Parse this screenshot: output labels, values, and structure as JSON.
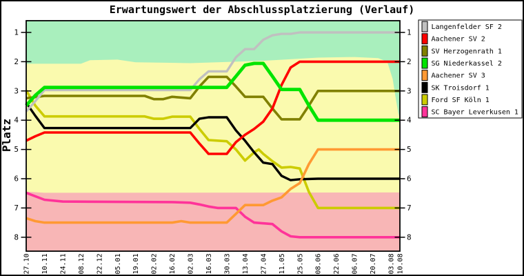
{
  "title": "Erwartungswert der Abschlussplatzierung (Verlauf)",
  "y_axis": {
    "label": "Platz",
    "ticks": [
      "1",
      "2",
      "3",
      "4",
      "5",
      "6",
      "7",
      "8"
    ]
  },
  "x_axis": {
    "labels": [
      "27.10",
      "10.11",
      "24.11",
      "08.12",
      "22.12",
      "05.01",
      "19.01",
      "02.02",
      "16.02",
      "02.03",
      "16.03",
      "30.03",
      "13.04",
      "27.04",
      "11.05",
      "25.05",
      "08.06",
      "22.06",
      "06.07",
      "20.07",
      "03.08",
      "10.08"
    ]
  },
  "chart_data": {
    "type": "line",
    "title": "Erwartungswert der Abschlussplatzierung (Verlauf)",
    "ylabel": "Platz",
    "x_tick_labels": [
      "27.10",
      "10.11",
      "24.11",
      "08.12",
      "22.12",
      "05.01",
      "19.01",
      "02.02",
      "16.02",
      "02.03",
      "16.03",
      "30.03",
      "13.04",
      "27.04",
      "11.05",
      "25.05",
      "08.06",
      "22.06",
      "06.07",
      "20.07",
      "03.08",
      "10.08"
    ],
    "x_note": "x unit = label index (14-day steps); last label 10.08 is a half step (7 days) after 03.08; series points may fall between labels (weekly rounds)",
    "y_ticks": [
      1,
      2,
      3,
      4,
      5,
      6,
      7,
      8
    ],
    "y_axis_inverted": true,
    "ylim": [
      0.6,
      8.45
    ],
    "grid": false,
    "legend_position": "right",
    "series": [
      {
        "name": "Langenfelder SF 2",
        "color": "#C0C0C0",
        "line_width": 3.4,
        "final_rank": 1,
        "points": [
          [
            0,
            3.7
          ],
          [
            0.5,
            3.35
          ],
          [
            1,
            2.97
          ],
          [
            9,
            2.97
          ],
          [
            9.5,
            2.6
          ],
          [
            10,
            2.33
          ],
          [
            11,
            2.33
          ],
          [
            11.5,
            1.85
          ],
          [
            12,
            1.57
          ],
          [
            12.5,
            1.57
          ],
          [
            13,
            1.25
          ],
          [
            13.5,
            1.1
          ],
          [
            14,
            1.05
          ],
          [
            14.5,
            1.05
          ],
          [
            15,
            1.0
          ],
          [
            21,
            1.0
          ]
        ]
      },
      {
        "name": "Aachener SV 2",
        "color": "#FF0000",
        "line_width": 3.6,
        "final_rank": 2,
        "points": [
          [
            0,
            4.7
          ],
          [
            0.5,
            4.55
          ],
          [
            1,
            4.42
          ],
          [
            9,
            4.42
          ],
          [
            9.5,
            4.8
          ],
          [
            10,
            5.15
          ],
          [
            11,
            5.15
          ],
          [
            11.5,
            4.75
          ],
          [
            12,
            4.5
          ],
          [
            12.5,
            4.3
          ],
          [
            13,
            4.05
          ],
          [
            13.5,
            3.6
          ],
          [
            14,
            2.8
          ],
          [
            14.5,
            2.2
          ],
          [
            15,
            2.0
          ],
          [
            21,
            2.0
          ]
        ]
      },
      {
        "name": "SV Herzogenrath 1",
        "color": "#808000",
        "line_width": 3.6,
        "final_rank": 3,
        "points": [
          [
            0,
            3.25
          ],
          [
            1,
            3.17
          ],
          [
            6.5,
            3.17
          ],
          [
            7,
            3.28
          ],
          [
            7.5,
            3.28
          ],
          [
            8,
            3.2
          ],
          [
            9,
            3.25
          ],
          [
            9.5,
            2.85
          ],
          [
            10,
            2.52
          ],
          [
            11,
            2.52
          ],
          [
            11.5,
            2.85
          ],
          [
            12,
            3.2
          ],
          [
            13,
            3.2
          ],
          [
            13.5,
            3.6
          ],
          [
            14,
            3.97
          ],
          [
            15,
            3.97
          ],
          [
            15.5,
            3.5
          ],
          [
            16,
            3.0
          ],
          [
            21,
            3.0
          ]
        ]
      },
      {
        "name": "SG Niederkassel 2",
        "color": "#00E400",
        "line_width": 4.8,
        "final_rank": 4,
        "points": [
          [
            0,
            3.5
          ],
          [
            0.5,
            3.15
          ],
          [
            1,
            2.88
          ],
          [
            11,
            2.88
          ],
          [
            11.5,
            2.5
          ],
          [
            12,
            2.12
          ],
          [
            12.5,
            2.06
          ],
          [
            13,
            2.06
          ],
          [
            13.5,
            2.5
          ],
          [
            14,
            2.95
          ],
          [
            15,
            2.95
          ],
          [
            15.5,
            3.5
          ],
          [
            16,
            4.0
          ],
          [
            21,
            4.0
          ]
        ]
      },
      {
        "name": "Aachener SV 3",
        "color": "#FF9933",
        "line_width": 3.6,
        "final_rank": 5,
        "points": [
          [
            0,
            7.35
          ],
          [
            0.5,
            7.45
          ],
          [
            1,
            7.5
          ],
          [
            8,
            7.5
          ],
          [
            8.5,
            7.45
          ],
          [
            9,
            7.5
          ],
          [
            11,
            7.5
          ],
          [
            11.5,
            7.2
          ],
          [
            12,
            6.9
          ],
          [
            13,
            6.9
          ],
          [
            13.5,
            6.75
          ],
          [
            14,
            6.64
          ],
          [
            14.5,
            6.35
          ],
          [
            15,
            6.15
          ],
          [
            15.5,
            5.5
          ],
          [
            16,
            5.0
          ],
          [
            21,
            5.0
          ]
        ]
      },
      {
        "name": "SK Troisdorf 1",
        "color": "#000000",
        "line_width": 3.4,
        "final_rank": 6,
        "points": [
          [
            0,
            3.4
          ],
          [
            0.5,
            3.85
          ],
          [
            1,
            4.27
          ],
          [
            9,
            4.27
          ],
          [
            9.5,
            3.95
          ],
          [
            10,
            3.9
          ],
          [
            11,
            3.9
          ],
          [
            11.5,
            4.35
          ],
          [
            12,
            4.7
          ],
          [
            12.5,
            5.1
          ],
          [
            13,
            5.45
          ],
          [
            13.5,
            5.5
          ],
          [
            14,
            5.9
          ],
          [
            14.5,
            6.05
          ],
          [
            15,
            6.02
          ],
          [
            16,
            6.0
          ],
          [
            21,
            6.0
          ]
        ]
      },
      {
        "name": "Ford SF Köln 1",
        "color": "#CCCC00",
        "line_width": 3.6,
        "final_rank": 7,
        "points": [
          [
            0,
            2.98
          ],
          [
            0.5,
            3.5
          ],
          [
            1,
            3.87
          ],
          [
            6.5,
            3.87
          ],
          [
            7,
            3.95
          ],
          [
            7.5,
            3.95
          ],
          [
            8,
            3.88
          ],
          [
            9,
            3.88
          ],
          [
            9.5,
            4.3
          ],
          [
            10,
            4.68
          ],
          [
            11,
            4.72
          ],
          [
            11.5,
            5.0
          ],
          [
            12,
            5.38
          ],
          [
            12.5,
            5.1
          ],
          [
            12.75,
            5.0
          ],
          [
            13,
            5.15
          ],
          [
            13.5,
            5.4
          ],
          [
            14,
            5.62
          ],
          [
            14.5,
            5.6
          ],
          [
            15,
            5.65
          ],
          [
            15.5,
            6.45
          ],
          [
            16,
            7.0
          ],
          [
            21,
            7.0
          ]
        ]
      },
      {
        "name": "SC Bayer Leverkusen 1",
        "color": "#FF3399",
        "line_width": 3.6,
        "final_rank": 8,
        "points": [
          [
            0,
            6.48
          ],
          [
            1,
            6.72
          ],
          [
            2,
            6.78
          ],
          [
            8,
            6.8
          ],
          [
            9,
            6.82
          ],
          [
            9.5,
            6.88
          ],
          [
            10,
            6.95
          ],
          [
            10.5,
            7.0
          ],
          [
            11.5,
            7.0
          ],
          [
            12,
            7.3
          ],
          [
            12.5,
            7.5
          ],
          [
            13.5,
            7.55
          ],
          [
            14,
            7.8
          ],
          [
            14.5,
            7.97
          ],
          [
            15,
            8.0
          ],
          [
            21,
            8.0
          ]
        ]
      }
    ],
    "background_zones": [
      {
        "name": "top-zone-green",
        "color": "#A9EFBD",
        "boundary_points": [
          [
            0,
            2.07
          ],
          [
            3,
            2.07
          ],
          [
            3.5,
            1.95
          ],
          [
            5,
            1.93
          ],
          [
            6,
            2.02
          ],
          [
            9,
            2.05
          ],
          [
            13,
            1.97
          ],
          [
            16,
            1.86
          ],
          [
            18,
            1.84
          ],
          [
            19.3,
            1.88
          ],
          [
            19.8,
            2.0
          ],
          [
            20.2,
            2.6
          ],
          [
            20.5,
            3.2
          ],
          [
            20.8,
            3.75
          ],
          [
            21,
            3.95
          ]
        ]
      },
      {
        "name": "mid-zone-yellow",
        "color": "#FAFAAE"
      },
      {
        "name": "bottom-zone-pink",
        "color": "#F8B6B6",
        "boundary_points": [
          [
            0,
            6.44
          ],
          [
            1,
            6.48
          ],
          [
            21,
            6.47
          ]
        ]
      }
    ]
  }
}
